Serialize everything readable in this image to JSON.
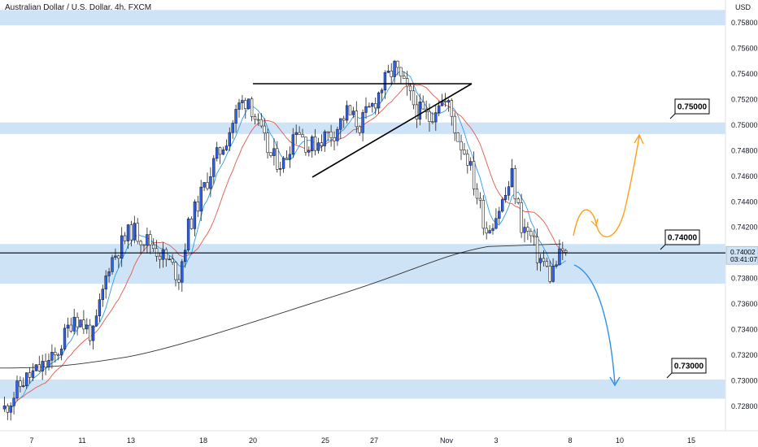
{
  "header": {
    "title": "Australian Dollar / U.S. Dollar, 4h, FXCM",
    "currency": "USD"
  },
  "chart_data": {
    "type": "candlestick",
    "symbol": "Australian Dollar / U.S. Dollar, 4h, FXCM",
    "y_axis": {
      "ticks": [
        "0.75800",
        "0.75600",
        "0.75400",
        "0.75200",
        "0.75000",
        "0.74800",
        "0.74600",
        "0.74400",
        "0.74200",
        "0.73800",
        "0.73600",
        "0.73400",
        "0.73200",
        "0.73000",
        "0.72800"
      ],
      "ylim": [
        0.727,
        0.759
      ]
    },
    "x_axis": {
      "ticks": [
        "7",
        "11",
        "13",
        "18",
        "20",
        "25",
        "27",
        "Nov",
        "3",
        "8",
        "10",
        "15"
      ]
    },
    "current_price": "0.74002",
    "countdown": "03:41:07",
    "levels": [
      {
        "label": "0.75000",
        "value": 0.75
      },
      {
        "label": "0.74000",
        "value": 0.74
      },
      {
        "label": "0.73000",
        "value": 0.73
      }
    ],
    "zones": [
      {
        "from": 0.7578,
        "to": 0.759
      },
      {
        "from": 0.7493,
        "to": 0.7502
      },
      {
        "from": 0.7376,
        "to": 0.7407
      },
      {
        "from": 0.7286,
        "to": 0.7301
      }
    ],
    "projections": [
      {
        "name": "bullish",
        "color": "#ff9f1c"
      },
      {
        "name": "bearish",
        "color": "#2e8fe6"
      }
    ],
    "colors": {
      "up": "#2962ff",
      "down": "#ffffff",
      "zone": "#cfe3f7",
      "ma_fast": "#2e9be6",
      "ma_mid": "#e05a4d",
      "ma_slow": "#333333",
      "bull_arrow": "#ff9f1c",
      "bear_arrow": "#2e8fe6"
    }
  }
}
